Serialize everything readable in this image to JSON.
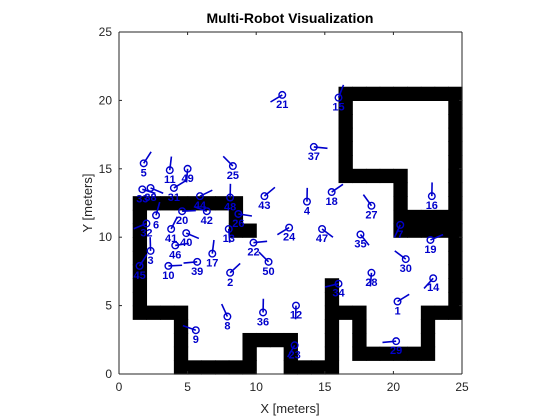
{
  "chart_data": {
    "type": "scatter",
    "title": "Multi-Robot Visualization",
    "xlabel": "X [meters]",
    "ylabel": "Y [meters]",
    "xlim": [
      0,
      25
    ],
    "ylim": [
      0,
      25
    ],
    "xticks": [
      0,
      5,
      10,
      15,
      20,
      25
    ],
    "yticks": [
      0,
      5,
      10,
      15,
      20,
      25
    ],
    "grid": false,
    "equal_aspect": true,
    "colors": {
      "robot": "#0000cc",
      "obstacle": "#000000",
      "axes": "#262626"
    },
    "map_grid": {
      "description": "occupancy grid, 1 cell = 1 meter, row index 0 = top (y 24..25)",
      "origin_top_y": 25,
      "rows": [
        "0000000000000000000000000",
        "0000000000000000000000000",
        "0000000000000000000000000",
        "0000000000000000000000000",
        "0000000000000000111111111",
        "0000000000000000100000001",
        "0000000000000000100000001",
        "0000000000000000100000001",
        "0000000000000000100000001",
        "0000000000000000100000001",
        "0000000000000000111110001",
        "0000000000000000000010001",
        "0111111110000000000010001",
        "0100000010000000000011111",
        "0100000011000000000011111",
        "0100000000000000000000001",
        "0100000000000000000000001",
        "0100000000000000000000001",
        "0100000000000001000000001",
        "0100000000000001000000001",
        "0111100000000001110000111",
        "0000100000000001010000100",
        "0000100001111001010000100",
        "0000100001001001011111100",
        "0000111111001111000000000"
      ]
    },
    "robots": [
      {
        "id": "1",
        "x": 20.3,
        "y": 5.3,
        "theta": 0.55
      },
      {
        "id": "2",
        "x": 8.1,
        "y": 7.4,
        "theta": 0.75
      },
      {
        "id": "3",
        "x": 2.3,
        "y": 9.0,
        "theta": 1.6
      },
      {
        "id": "4",
        "x": 13.7,
        "y": 12.6,
        "theta": 1.55
      },
      {
        "id": "5",
        "x": 1.8,
        "y": 15.4,
        "theta": 1.0
      },
      {
        "id": "6",
        "x": 2.7,
        "y": 11.6,
        "theta": 1.3
      },
      {
        "id": "7",
        "x": 20.5,
        "y": 10.9,
        "theta": -2.0
      },
      {
        "id": "8",
        "x": 7.9,
        "y": 4.2,
        "theta": 2.0
      },
      {
        "id": "9",
        "x": 5.6,
        "y": 3.2,
        "theta": 2.8
      },
      {
        "id": "10",
        "x": 3.6,
        "y": 7.9,
        "theta": 0.05
      },
      {
        "id": "11",
        "x": 3.7,
        "y": 14.9,
        "theta": 1.45
      },
      {
        "id": "12",
        "x": 12.9,
        "y": 5.0,
        "theta": -1.6
      },
      {
        "id": "13",
        "x": 8.0,
        "y": 10.6,
        "theta": -1.5
      },
      {
        "id": "14",
        "x": 22.9,
        "y": 7.0,
        "theta": -2.3
      },
      {
        "id": "15",
        "x": 16.0,
        "y": 20.2,
        "theta": 1.2
      },
      {
        "id": "16",
        "x": 22.8,
        "y": 13.0,
        "theta": 1.55
      },
      {
        "id": "17",
        "x": 6.8,
        "y": 8.8,
        "theta": 1.45
      },
      {
        "id": "18",
        "x": 15.5,
        "y": 13.3,
        "theta": 0.6
      },
      {
        "id": "19",
        "x": 22.7,
        "y": 9.8,
        "theta": 0.4
      },
      {
        "id": "20",
        "x": 4.6,
        "y": 11.9,
        "theta": 0.05
      },
      {
        "id": "21",
        "x": 11.9,
        "y": 20.4,
        "theta": -2.6
      },
      {
        "id": "22",
        "x": 9.8,
        "y": 9.6,
        "theta": 0.1
      },
      {
        "id": "23",
        "x": 12.8,
        "y": 2.1,
        "theta": -2.1
      },
      {
        "id": "24",
        "x": 12.4,
        "y": 10.7,
        "theta": -2.6
      },
      {
        "id": "25",
        "x": 8.3,
        "y": 15.2,
        "theta": 2.35
      },
      {
        "id": "26",
        "x": 8.7,
        "y": 11.7,
        "theta": -0.15
      },
      {
        "id": "27",
        "x": 18.4,
        "y": 12.3,
        "theta": 2.2
      },
      {
        "id": "28",
        "x": 18.4,
        "y": 7.4,
        "theta": -1.65
      },
      {
        "id": "29",
        "x": 20.2,
        "y": 2.4,
        "theta": -3.05
      },
      {
        "id": "30",
        "x": 20.9,
        "y": 8.4,
        "theta": 2.5
      },
      {
        "id": "31",
        "x": 4.0,
        "y": 13.6,
        "theta": 0.55
      },
      {
        "id": "32",
        "x": 2.0,
        "y": 11.0,
        "theta": -2.75
      },
      {
        "id": "33",
        "x": 1.7,
        "y": 13.5,
        "theta": -0.3
      },
      {
        "id": "34",
        "x": 16.0,
        "y": 6.6,
        "theta": -2.9
      },
      {
        "id": "35",
        "x": 17.6,
        "y": 10.2,
        "theta": -0.9
      },
      {
        "id": "36",
        "x": 10.5,
        "y": 4.5,
        "theta": 1.55
      },
      {
        "id": "37",
        "x": 14.2,
        "y": 16.6,
        "theta": -0.1
      },
      {
        "id": "38",
        "x": 2.3,
        "y": 13.6,
        "theta": -0.4
      },
      {
        "id": "39",
        "x": 5.7,
        "y": 8.2,
        "theta": -3.05
      },
      {
        "id": "40",
        "x": 4.9,
        "y": 10.3,
        "theta": -0.4
      },
      {
        "id": "41",
        "x": 3.8,
        "y": 10.6,
        "theta": 1.1
      },
      {
        "id": "42",
        "x": 6.4,
        "y": 11.9,
        "theta": 2.8
      },
      {
        "id": "43",
        "x": 10.6,
        "y": 13.0,
        "theta": 0.7
      },
      {
        "id": "44",
        "x": 5.9,
        "y": 13.0,
        "theta": 0.45
      },
      {
        "id": "45",
        "x": 1.5,
        "y": 7.9,
        "theta": 1.0
      },
      {
        "id": "46",
        "x": 4.1,
        "y": 9.4,
        "theta": 0.15
      },
      {
        "id": "47",
        "x": 14.8,
        "y": 10.6,
        "theta": -0.65
      },
      {
        "id": "48",
        "x": 8.1,
        "y": 12.9,
        "theta": 1.55
      },
      {
        "id": "49",
        "x": 5.0,
        "y": 15.0,
        "theta": -1.65
      },
      {
        "id": "50",
        "x": 10.9,
        "y": 8.2,
        "theta": 2.35
      }
    ]
  }
}
